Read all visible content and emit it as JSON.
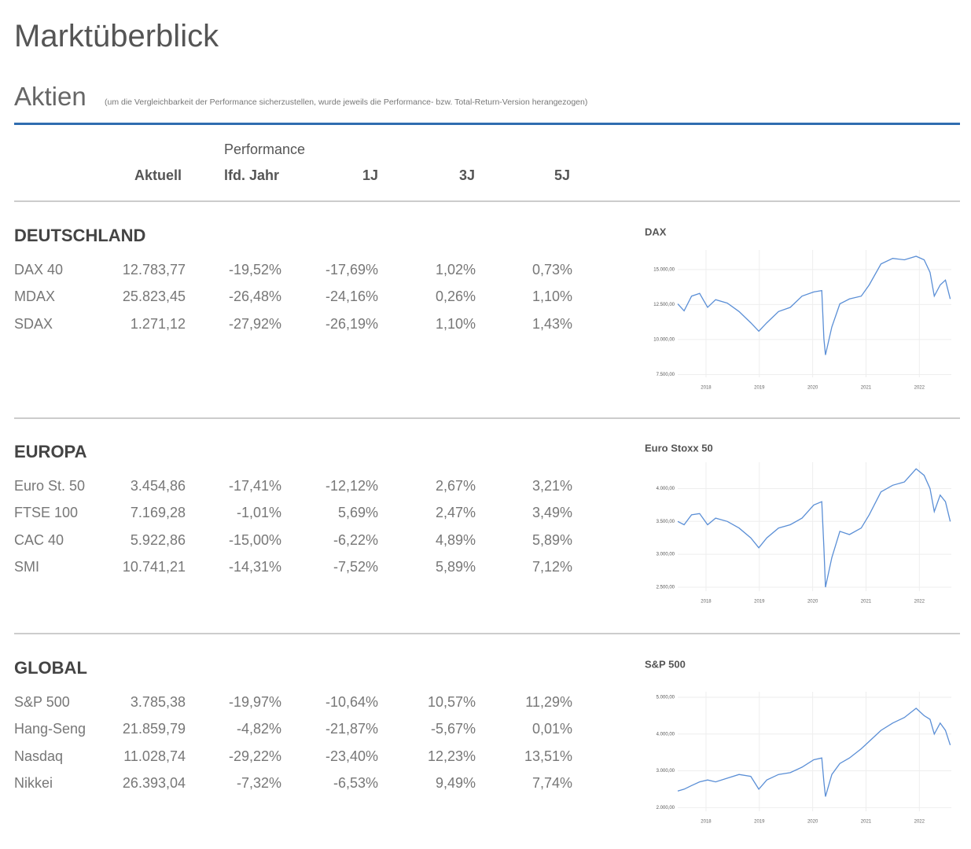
{
  "header": {
    "title": "Marktüberblick",
    "subtitle": "Aktien",
    "note": "(um die Vergleichbarkeit der Performance sicherzustellen, wurde jeweils die Performance- bzw. Total-Return-Version herangezogen)"
  },
  "table": {
    "group_label": "Performance",
    "columns": [
      "Aktuell",
      "lfd. Jahr",
      "1J",
      "3J",
      "5J"
    ],
    "sections": [
      {
        "name": "DEUTSCHLAND",
        "rows": [
          [
            "DAX 40",
            "12.783,77",
            "-19,52%",
            "-17,69%",
            "1,02%",
            "0,73%"
          ],
          [
            "MDAX",
            "25.823,45",
            "-26,48%",
            "-24,16%",
            "0,26%",
            "1,10%"
          ],
          [
            "SDAX",
            "1.271,12",
            "-27,92%",
            "-26,19%",
            "1,10%",
            "1,43%"
          ]
        ]
      },
      {
        "name": "EUROPA",
        "rows": [
          [
            "Euro St. 50",
            "3.454,86",
            "-17,41%",
            "-12,12%",
            "2,67%",
            "3,21%"
          ],
          [
            "FTSE 100",
            "7.169,28",
            "-1,01%",
            "5,69%",
            "2,47%",
            "3,49%"
          ],
          [
            "CAC 40",
            "5.922,86",
            "-15,00%",
            "-6,22%",
            "4,89%",
            "5,89%"
          ],
          [
            "SMI",
            "10.741,21",
            "-14,31%",
            "-7,52%",
            "5,89%",
            "7,12%"
          ]
        ]
      },
      {
        "name": "GLOBAL",
        "rows": [
          [
            "S&P 500",
            "3.785,38",
            "-19,97%",
            "-10,64%",
            "10,57%",
            "11,29%"
          ],
          [
            "Hang-Seng",
            "21.859,79",
            "-4,82%",
            "-21,87%",
            "-5,67%",
            "0,01%"
          ],
          [
            "Nasdaq",
            "11.028,74",
            "-29,22%",
            "-23,40%",
            "12,23%",
            "13,51%"
          ],
          [
            "Nikkei",
            "26.393,04",
            "-7,32%",
            "-6,53%",
            "9,49%",
            "7,74%"
          ]
        ]
      }
    ]
  },
  "chart_data": [
    {
      "type": "line",
      "title": "DAX",
      "color": "#5b8fd6",
      "grid": true,
      "x": [
        2017.47,
        2017.59,
        2017.73,
        2017.88,
        2018.03,
        2018.18,
        2018.4,
        2018.62,
        2018.84,
        2018.99,
        2019.14,
        2019.36,
        2019.58,
        2019.8,
        2020.02,
        2020.17,
        2020.21,
        2020.24,
        2020.36,
        2020.51,
        2020.69,
        2020.91,
        2021.06,
        2021.28,
        2021.5,
        2021.72,
        2021.94,
        2022.09,
        2022.2,
        2022.28,
        2022.39,
        2022.49,
        2022.58
      ],
      "values": [
        12550,
        12050,
        13100,
        13300,
        12300,
        12850,
        12600,
        12000,
        11200,
        10600,
        11200,
        12000,
        12300,
        13100,
        13400,
        13500,
        10050,
        8900,
        10900,
        12550,
        12900,
        13100,
        13900,
        15400,
        15800,
        15700,
        15950,
        15700,
        14800,
        13100,
        13900,
        14250,
        12900
      ],
      "xlim": [
        2017.47,
        2022.6
      ],
      "ylim": [
        7300,
        16400
      ],
      "xticks": [
        2018,
        2019,
        2020,
        2021,
        2022
      ],
      "yticks": [
        {
          "value": 7500,
          "label": "7.500,00"
        },
        {
          "value": 10000,
          "label": "10.000,00"
        },
        {
          "value": 12500,
          "label": "12.500,00"
        },
        {
          "value": 15000,
          "label": "15.000,00"
        }
      ]
    },
    {
      "type": "line",
      "title": "Euro Stoxx 50",
      "color": "#5b8fd6",
      "grid": true,
      "x": [
        2017.47,
        2017.59,
        2017.73,
        2017.88,
        2018.03,
        2018.18,
        2018.4,
        2018.62,
        2018.84,
        2018.99,
        2019.14,
        2019.36,
        2019.58,
        2019.8,
        2020.02,
        2020.17,
        2020.21,
        2020.24,
        2020.36,
        2020.51,
        2020.69,
        2020.91,
        2021.06,
        2021.28,
        2021.5,
        2021.72,
        2021.94,
        2022.09,
        2022.2,
        2022.28,
        2022.39,
        2022.49,
        2022.58
      ],
      "values": [
        3500,
        3450,
        3600,
        3620,
        3450,
        3550,
        3500,
        3400,
        3250,
        3100,
        3250,
        3400,
        3450,
        3550,
        3750,
        3800,
        3100,
        2500,
        2950,
        3350,
        3300,
        3400,
        3600,
        3950,
        4050,
        4100,
        4300,
        4200,
        4000,
        3650,
        3900,
        3800,
        3500
      ],
      "xlim": [
        2017.47,
        2022.6
      ],
      "ylim": [
        2440,
        4400
      ],
      "xticks": [
        2018,
        2019,
        2020,
        2021,
        2022
      ],
      "yticks": [
        {
          "value": 2500,
          "label": "2.500,00"
        },
        {
          "value": 3000,
          "label": "3.000,00"
        },
        {
          "value": 3500,
          "label": "3.500,00"
        },
        {
          "value": 4000,
          "label": "4.000,00"
        }
      ]
    },
    {
      "type": "line",
      "title": "S&P 500",
      "color": "#5b8fd6",
      "grid": true,
      "x": [
        2017.47,
        2017.59,
        2017.73,
        2017.88,
        2018.03,
        2018.18,
        2018.4,
        2018.62,
        2018.84,
        2018.99,
        2019.14,
        2019.36,
        2019.58,
        2019.8,
        2020.02,
        2020.17,
        2020.21,
        2020.24,
        2020.36,
        2020.51,
        2020.69,
        2020.91,
        2021.06,
        2021.28,
        2021.5,
        2021.72,
        2021.94,
        2022.09,
        2022.2,
        2022.28,
        2022.39,
        2022.49,
        2022.58
      ],
      "values": [
        2450,
        2500,
        2600,
        2700,
        2750,
        2700,
        2800,
        2900,
        2850,
        2500,
        2750,
        2900,
        2950,
        3100,
        3300,
        3350,
        2700,
        2300,
        2900,
        3200,
        3350,
        3600,
        3800,
        4100,
        4300,
        4450,
        4700,
        4500,
        4400,
        4000,
        4300,
        4100,
        3700
      ],
      "xlim": [
        2017.47,
        2022.6
      ],
      "ylim": [
        1900,
        5150
      ],
      "xticks": [
        2018,
        2019,
        2020,
        2021,
        2022
      ],
      "yticks": [
        {
          "value": 2000,
          "label": "2.000,00"
        },
        {
          "value": 3000,
          "label": "3.000,00"
        },
        {
          "value": 4000,
          "label": "4.000,00"
        },
        {
          "value": 5000,
          "label": "5.000,00"
        }
      ]
    }
  ]
}
